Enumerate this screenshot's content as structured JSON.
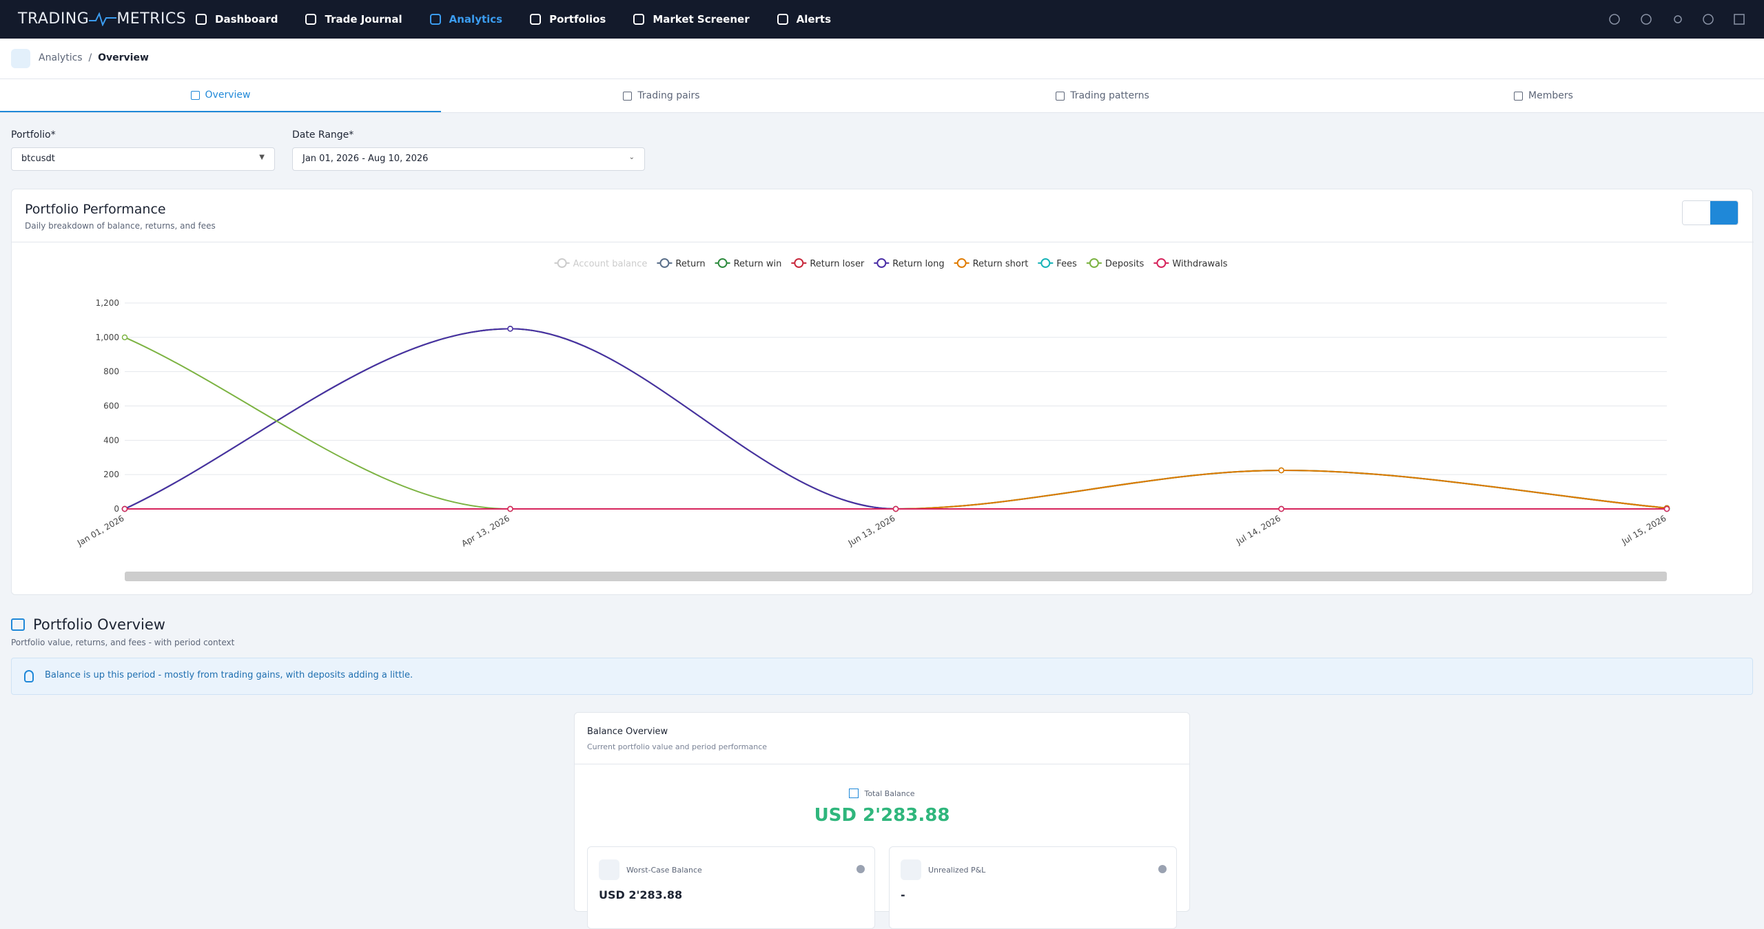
{
  "nav": {
    "brand_left": "TRADING",
    "brand_right": "METRICS",
    "items": [
      "Dashboard",
      "Trade Journal",
      "Analytics",
      "Portfolios",
      "Market Screener",
      "Alerts"
    ],
    "active": 2
  },
  "breadcrumb": [
    "Analytics",
    "Overview"
  ],
  "tabs": [
    "Overview",
    "Trading pairs",
    "Trading patterns",
    "Members"
  ],
  "filters": {
    "portfolio_label": "Portfolio*",
    "portfolio": "btcusdt",
    "date_label": "Date Range*",
    "date_range": "Jan 01, 2026 - Aug 10, 2026"
  },
  "chart_data": {
    "type": "line",
    "title": "Portfolio Performance",
    "subtitle": "Daily breakdown of balance, returns, and fees",
    "categories": [
      "Jan 01, 2026",
      "Apr 13, 2026",
      "Jun 13, 2026",
      "Jul 14, 2026",
      "Jul 15, 2026"
    ],
    "series": [
      {
        "name": "Account balance",
        "color": "#cccccc",
        "visible": false
      },
      {
        "name": "Return",
        "color": "#5a6f8a",
        "values": [
          0,
          1050,
          0,
          225,
          5
        ]
      },
      {
        "name": "Return win",
        "color": "#2e8b3e",
        "values": [
          0,
          1050,
          0,
          225,
          5
        ]
      },
      {
        "name": "Return loser",
        "color": "#c8283c",
        "values": [
          0,
          0,
          0,
          0,
          0
        ]
      },
      {
        "name": "Return long",
        "color": "#4b2fa6",
        "values": [
          0,
          1050,
          0,
          0,
          0
        ]
      },
      {
        "name": "Return short",
        "color": "#e07b00",
        "values": [
          0,
          0,
          0,
          225,
          5
        ]
      },
      {
        "name": "Fees",
        "color": "#17b3b8",
        "values": [
          0,
          0,
          0,
          0,
          0
        ]
      },
      {
        "name": "Deposits",
        "color": "#7cb342",
        "values": [
          1000,
          0,
          0,
          0,
          0
        ]
      },
      {
        "name": "Withdrawals",
        "color": "#d6245c",
        "values": [
          0,
          0,
          0,
          0,
          0
        ]
      }
    ],
    "ylim": [
      0,
      1200
    ],
    "yticks": [
      0,
      200,
      400,
      600,
      800,
      {
        "value": 1000,
        "label": "1,000"
      },
      {
        "value": 1200,
        "label": "1,200"
      }
    ],
    "grid": true
  },
  "overview": {
    "title": "Portfolio Overview",
    "subtitle": "Portfolio value, returns, and fees - with period context",
    "insight": "Balance is up this period - mostly from trading gains, with deposits adding a little.",
    "card": {
      "title": "Balance Overview",
      "subtitle": "Current portfolio value and period performance",
      "total_label": "Total Balance",
      "total_value": "USD 2'283.88",
      "tiles": [
        {
          "label": "Worst-Case Balance",
          "value": "USD 2'283.88"
        },
        {
          "label": "Unrealized P&L",
          "value": "-"
        }
      ]
    }
  }
}
